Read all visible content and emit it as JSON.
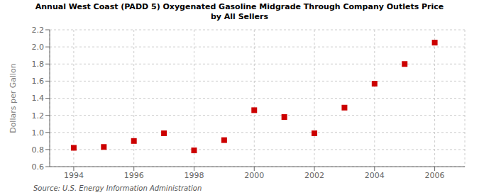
{
  "chart_data": {
    "type": "scatter",
    "title": "Annual West Coast (PADD 5) Oxygenated Gasoline Midgrade Through Company Outlets Price\nby All Sellers",
    "ylabel": "Dollars per Gallon",
    "source": "Source: U.S. Energy Information Administration",
    "x": [
      1994,
      1995,
      1996,
      1997,
      1998,
      1999,
      2000,
      2001,
      2002,
      2003,
      2004,
      2005,
      2006
    ],
    "values": [
      0.82,
      0.83,
      0.9,
      0.99,
      0.79,
      0.91,
      1.26,
      1.18,
      0.99,
      1.29,
      1.57,
      1.8,
      2.05
    ],
    "color": "#cc0000",
    "marker": "square",
    "xlim": [
      1993.2,
      2007.0
    ],
    "xticks": [
      1994,
      1996,
      1998,
      2000,
      2002,
      2004,
      2006
    ],
    "ylim": [
      0.6,
      2.2
    ],
    "yticks": [
      0.6,
      0.8,
      {
        "value": 1.0,
        "label": "1.0"
      },
      1.2,
      1.4,
      1.6,
      1.8,
      {
        "value": 2.0,
        "label": "2.0"
      },
      2.2
    ],
    "grid": true
  }
}
